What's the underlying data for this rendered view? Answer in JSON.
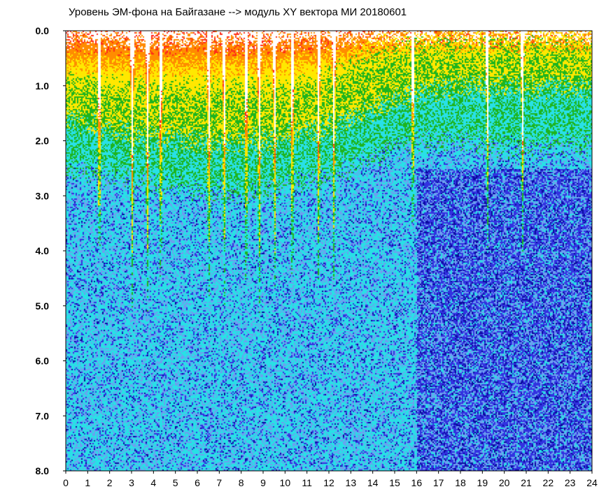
{
  "chart_data": {
    "type": "heatmap",
    "title": "Уровень ЭМ-фона на Байгазане   -->  модуль XY вектора МИ  20180601",
    "xlabel": "",
    "ylabel": "",
    "x_ticks": [
      "0",
      "1",
      "2",
      "3",
      "4",
      "5",
      "6",
      "7",
      "8",
      "9",
      "10",
      "11",
      "12",
      "13",
      "14",
      "15",
      "16",
      "17",
      "18",
      "19",
      "20",
      "21",
      "22",
      "23",
      "24"
    ],
    "y_ticks": [
      "0.0",
      "1.0",
      "2.0",
      "3.0",
      "4.0",
      "5.0",
      "6.0",
      "7.0",
      "8.0"
    ],
    "xlim": [
      0,
      24
    ],
    "ylim": [
      0,
      8
    ],
    "y_inverted": true,
    "grid": false,
    "colormap": [
      "#ffffff",
      "#ff2a1a",
      "#ff8c00",
      "#ffe800",
      "#1eb41e",
      "#28e0e6",
      "#6ba0f0",
      "#3232e0",
      "#0a0aa0"
    ],
    "level_boundary_by_hour": [
      {
        "hour": 0,
        "red": 0.2,
        "yellow": 0.9,
        "green": 1.6,
        "cyan": 2.5
      },
      {
        "hour": 2,
        "red": 0.2,
        "yellow": 1.0,
        "green": 1.8,
        "cyan": 2.6
      },
      {
        "hour": 4,
        "red": 0.25,
        "yellow": 1.0,
        "green": 1.9,
        "cyan": 2.8
      },
      {
        "hour": 6,
        "red": 0.2,
        "yellow": 1.0,
        "green": 2.0,
        "cyan": 2.9
      },
      {
        "hour": 8,
        "red": 0.25,
        "yellow": 1.0,
        "green": 2.0,
        "cyan": 3.0
      },
      {
        "hour": 10,
        "red": 0.2,
        "yellow": 1.0,
        "green": 1.9,
        "cyan": 2.8
      },
      {
        "hour": 12,
        "red": 0.15,
        "yellow": 0.8,
        "green": 1.7,
        "cyan": 2.6
      },
      {
        "hour": 14,
        "red": 0.1,
        "yellow": 0.5,
        "green": 1.4,
        "cyan": 2.3
      },
      {
        "hour": 16,
        "red": 0.05,
        "yellow": 0.3,
        "green": 1.1,
        "cyan": 2.0
      },
      {
        "hour": 18,
        "red": 0.05,
        "yellow": 0.3,
        "green": 1.0,
        "cyan": 2.0
      },
      {
        "hour": 20,
        "red": 0.05,
        "yellow": 0.3,
        "green": 1.0,
        "cyan": 2.1
      },
      {
        "hour": 22,
        "red": 0.05,
        "yellow": 0.3,
        "green": 1.0,
        "cyan": 2.1
      },
      {
        "hour": 24,
        "red": 0.05,
        "yellow": 0.3,
        "green": 1.0,
        "cyan": 2.1
      }
    ],
    "deep_blue_region": {
      "from_hour": 16,
      "to_hour": 24,
      "y_from": 2.5,
      "y_to": 8.0
    },
    "vertical_streaks_hours": [
      1.5,
      3.0,
      3.7,
      4.3,
      6.5,
      7.2,
      8.2,
      8.8,
      9.5,
      10.3,
      11.5,
      12.2,
      15.8,
      19.2,
      20.8
    ]
  }
}
